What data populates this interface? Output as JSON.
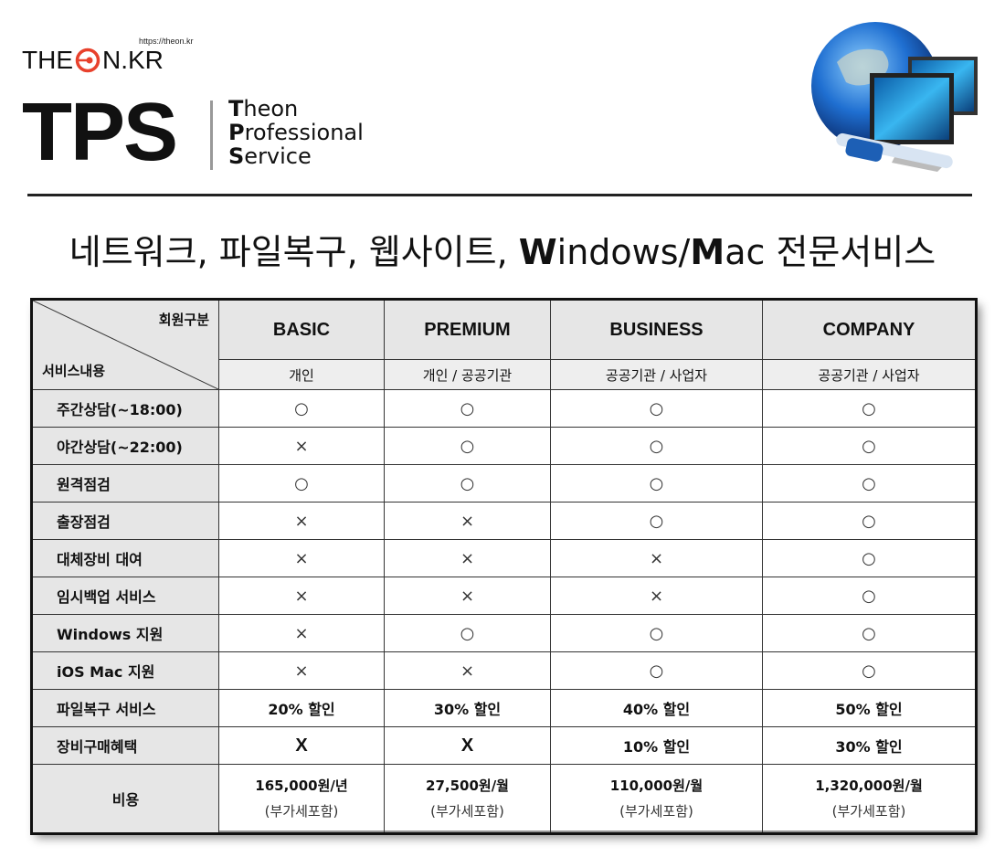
{
  "brand": {
    "url": "https://theon.kr",
    "logo_left": "THE",
    "logo_right": "N.KR",
    "tps": "TPS",
    "sub": [
      {
        "first": "T",
        "rest": "heon"
      },
      {
        "first": "P",
        "rest": "rofessional"
      },
      {
        "first": "S",
        "rest": "ervice"
      }
    ],
    "logo_accent": "#e8412c"
  },
  "title": {
    "part1": "네트워크, 파일복구, 웹사이트, ",
    "w": "W",
    "part2": "indows/",
    "m": "M",
    "part3": "ac 전문서비스"
  },
  "table": {
    "corner_top": "회원구분",
    "corner_bottom": "서비스내용",
    "plans": [
      "BASIC",
      "PREMIUM",
      "BUSINESS",
      "COMPANY"
    ],
    "targets": [
      "개인",
      "개인 / 공공기관",
      "공공기관 / 사업자",
      "공공기관 / 사업자"
    ],
    "rows": [
      {
        "label": "주간상담(~18:00)",
        "cells": [
          "○",
          "○",
          "○",
          "○"
        ]
      },
      {
        "label": "야간상담(~22:00)",
        "cells": [
          "×",
          "○",
          "○",
          "○"
        ]
      },
      {
        "label": "원격점검",
        "cells": [
          "○",
          "○",
          "○",
          "○"
        ]
      },
      {
        "label": "출장점검",
        "cells": [
          "×",
          "×",
          "○",
          "○"
        ]
      },
      {
        "label": "대체장비 대여",
        "cells": [
          "×",
          "×",
          "×",
          "○"
        ]
      },
      {
        "label": "임시백업 서비스",
        "cells": [
          "×",
          "×",
          "×",
          "○"
        ]
      },
      {
        "label": "Windows 지원",
        "cells": [
          "×",
          "○",
          "○",
          "○"
        ]
      },
      {
        "label": "iOS Mac 지원",
        "cells": [
          "×",
          "×",
          "○",
          "○"
        ]
      },
      {
        "label": "파일복구 서비스",
        "cells": [
          "20% 할인",
          "30% 할인",
          "40% 할인",
          "50% 할인"
        ]
      },
      {
        "label": "장비구매혜택",
        "cells": [
          "X",
          "X",
          "10% 할인",
          "30% 할인"
        ]
      }
    ],
    "cost_label": "비용",
    "costs": [
      {
        "price": "165,000원/년",
        "note": "(부가세포함)"
      },
      {
        "price": "27,500원/월",
        "note": "(부가세포함)"
      },
      {
        "price": "110,000원/월",
        "note": "(부가세포함)"
      },
      {
        "price": "1,320,000원/월",
        "note": "(부가세포함)"
      }
    ]
  }
}
